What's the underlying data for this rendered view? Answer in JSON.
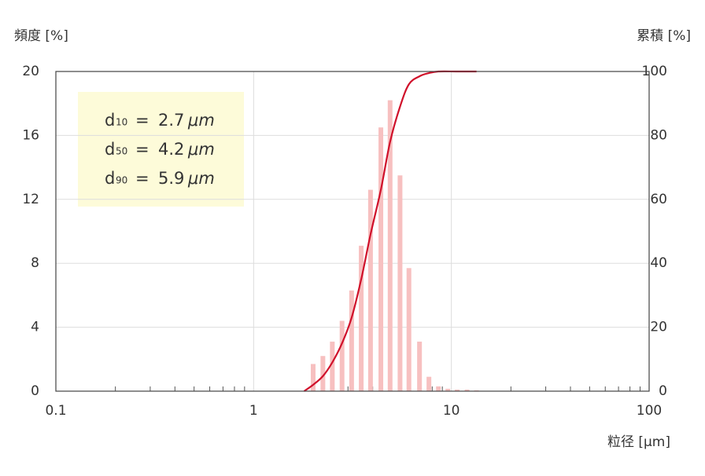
{
  "chart_data": {
    "type": "bar",
    "y_label": "頻度 [%]",
    "y2_label": "累積 [%]",
    "x_label": "粒径 [μm]",
    "log_x": true,
    "grid": true,
    "xlim": [
      0.1,
      100
    ],
    "xticks": [
      0.1,
      1,
      10,
      100
    ],
    "xminorticks": [
      0.2,
      0.3,
      0.4,
      0.5,
      0.6,
      0.7,
      0.8,
      0.9,
      2,
      3,
      4,
      5,
      6,
      7,
      8,
      9,
      20,
      30,
      40,
      50,
      60,
      70,
      80,
      90
    ],
    "ylim": [
      0,
      20
    ],
    "yticks": [
      0,
      4,
      8,
      12,
      16,
      20
    ],
    "y2lim": [
      0,
      100
    ],
    "y2ticks": [
      0,
      20,
      40,
      60,
      80,
      100
    ],
    "series": [
      {
        "kind": "bar",
        "color": "#f7c0c0",
        "x": [
          2.0,
          2.24,
          2.5,
          2.8,
          3.13,
          3.5,
          3.9,
          4.4,
          4.9,
          5.5,
          6.1,
          6.9,
          7.7,
          8.6,
          9.6,
          10.7,
          12.0,
          13.4
        ],
        "values": [
          1.7,
          2.2,
          3.1,
          4.4,
          6.3,
          9.1,
          12.6,
          16.5,
          18.2,
          13.5,
          7.7,
          3.1,
          0.9,
          0.3,
          0.15,
          0.1,
          0.1,
          0.05
        ]
      },
      {
        "kind": "line",
        "axis": "y2",
        "color": "#d0102a",
        "x": [
          1.8,
          2.0,
          2.24,
          2.5,
          2.8,
          3.13,
          3.5,
          3.9,
          4.4,
          4.9,
          5.5,
          6.1,
          6.9,
          7.7,
          8.6,
          10.7,
          13.4
        ],
        "values": [
          0,
          2,
          4.7,
          9,
          15,
          23,
          35,
          49,
          63,
          78,
          89,
          96,
          98.5,
          99.5,
          100,
          100,
          100
        ]
      }
    ],
    "annotations": [
      {
        "symbol": "d",
        "subscript": "10",
        "relation": "=",
        "value": "2.7",
        "unit": "μm"
      },
      {
        "symbol": "d",
        "subscript": "50",
        "relation": "=",
        "value": "4.2",
        "unit": "μm"
      },
      {
        "symbol": "d",
        "subscript": "90",
        "relation": "=",
        "value": "5.9",
        "unit": "μm"
      }
    ]
  }
}
